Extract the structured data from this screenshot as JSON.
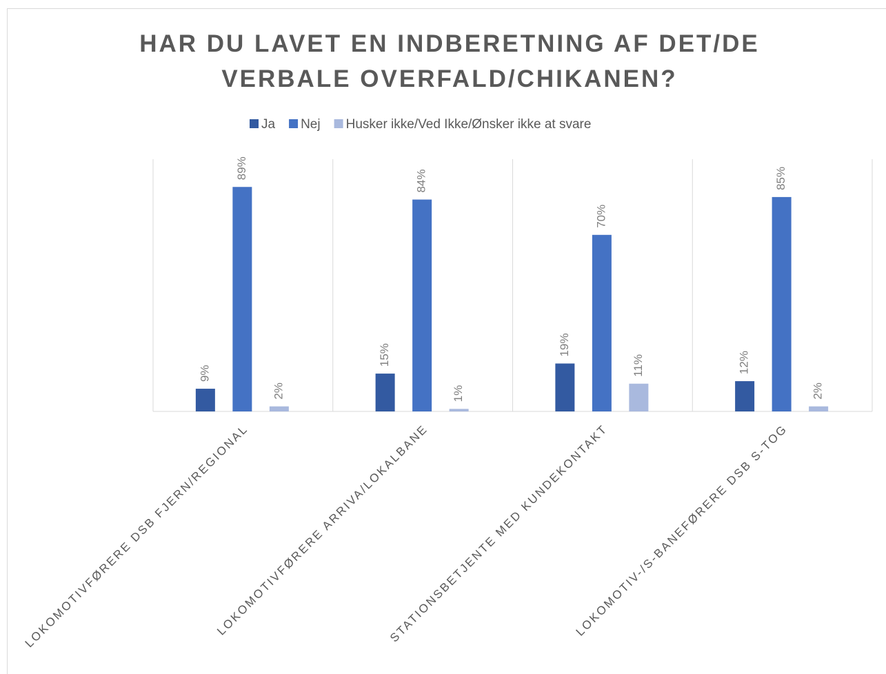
{
  "chart_data": {
    "type": "bar",
    "title": "HAR DU LAVET EN INDBERETNING AF DET/DE VERBALE OVERFALD/CHIKANEN?",
    "categories": [
      "LOKOMOTIVFØRERE DSB FJERN/REGIONAL",
      "LOKOMOTIVFØRERE ARRIVA/LOKALBANE",
      "STATIONSBETJENTE MED KUNDEKONTAKT",
      "LOKOMOTIV-/S-BANEFØRERE DSB S-TOG"
    ],
    "series": [
      {
        "name": "Ja",
        "color": "#335aa1",
        "values": [
          9,
          15,
          19,
          12
        ],
        "value_labels": [
          "9%",
          "15%",
          "19%",
          "12%"
        ]
      },
      {
        "name": "Nej",
        "color": "#4472c4",
        "values": [
          89,
          84,
          70,
          85
        ],
        "value_labels": [
          "89%",
          "84%",
          "70%",
          "85%"
        ]
      },
      {
        "name": "Husker ikke/Ved Ikke/Ønsker ikke at svare",
        "color": "#a9b9de",
        "values": [
          2,
          1,
          11,
          2
        ],
        "value_labels": [
          "2%",
          "1%",
          "11%",
          "2%"
        ]
      }
    ],
    "ylim": [
      0,
      100
    ],
    "legend": "top"
  }
}
